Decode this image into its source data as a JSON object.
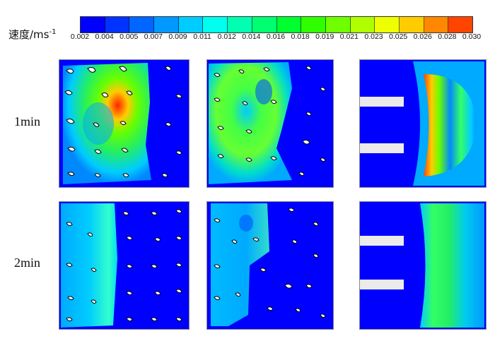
{
  "colorbar": {
    "title": "速度/ms",
    "title_superscript": "-1",
    "ticks": [
      "0.002",
      "0.004",
      "0.005",
      "0.007",
      "0.009",
      "0.011",
      "0.012",
      "0.014",
      "0.016",
      "0.018",
      "0.019",
      "0.021",
      "0.023",
      "0.025",
      "0.026",
      "0.028",
      "0.030"
    ],
    "colors": [
      "#0000ff",
      "#0033ff",
      "#0066ff",
      "#0099ff",
      "#00ccff",
      "#00ffee",
      "#00ffb0",
      "#00ff70",
      "#00ff30",
      "#30ff00",
      "#70ff00",
      "#b0ff00",
      "#eeff00",
      "#ffcc00",
      "#ff8800",
      "#ff4400"
    ]
  },
  "rows": [
    {
      "label": "1min"
    },
    {
      "label": "2min"
    }
  ]
}
